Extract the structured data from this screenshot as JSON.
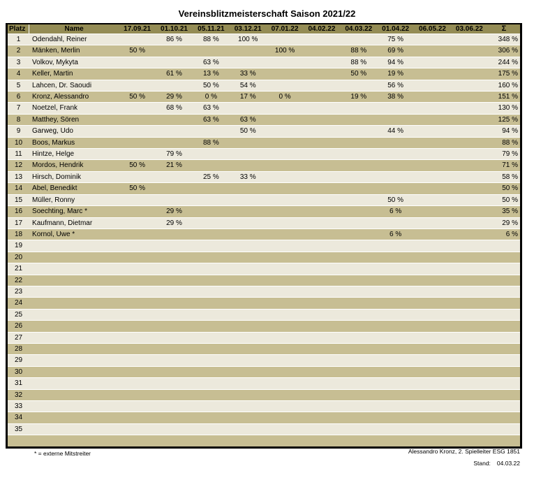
{
  "title": "Vereinsblitzmeisterschaft Saison 2021/22",
  "colors": {
    "header_bg": "#948c55",
    "row_odd": "#ece9dc",
    "row_even": "#c7be93",
    "table_border": "#000000",
    "row_separator": "#ffffff",
    "text": "#000000"
  },
  "table": {
    "columns": [
      "Platz",
      "Name",
      "17.09.21",
      "01.10.21",
      "05.11.21",
      "03.12.21",
      "07.01.22",
      "04.02.22",
      "04.03.22",
      "01.04.22",
      "06.05.22",
      "03.06.22",
      "Σ"
    ],
    "rows": [
      {
        "platz": "1",
        "name": "Odendahl, Reiner",
        "scores": [
          "",
          "86 %",
          "88 %",
          "100 %",
          "",
          "",
          "",
          "75 %",
          "",
          ""
        ],
        "sum": "348 %"
      },
      {
        "platz": "2",
        "name": "Mänken, Merlin",
        "scores": [
          "50 %",
          "",
          "",
          "",
          "100 %",
          "",
          "88 %",
          "69 %",
          "",
          ""
        ],
        "sum": "306 %"
      },
      {
        "platz": "3",
        "name": "Volkov, Mykyta",
        "scores": [
          "",
          "",
          "63 %",
          "",
          "",
          "",
          "88 %",
          "94 %",
          "",
          ""
        ],
        "sum": "244 %"
      },
      {
        "platz": "4",
        "name": "Keller, Martin",
        "scores": [
          "",
          "61 %",
          "13 %",
          "33 %",
          "",
          "",
          "50 %",
          "19 %",
          "",
          ""
        ],
        "sum": "175 %"
      },
      {
        "platz": "5",
        "name": "Lahcen, Dr. Saoudi",
        "scores": [
          "",
          "",
          "50 %",
          "54 %",
          "",
          "",
          "",
          "56 %",
          "",
          ""
        ],
        "sum": "160 %"
      },
      {
        "platz": "6",
        "name": "Kronz, Alessandro",
        "scores": [
          "50 %",
          "29 %",
          "0 %",
          "17 %",
          "0 %",
          "",
          "19 %",
          "38 %",
          "",
          ""
        ],
        "sum": "151 %"
      },
      {
        "platz": "7",
        "name": "Noetzel, Frank",
        "scores": [
          "",
          "68 %",
          "63 %",
          "",
          "",
          "",
          "",
          "",
          "",
          ""
        ],
        "sum": "130 %"
      },
      {
        "platz": "8",
        "name": "Matthey, Sören",
        "scores": [
          "",
          "",
          "63 %",
          "63 %",
          "",
          "",
          "",
          "",
          "",
          ""
        ],
        "sum": "125 %"
      },
      {
        "platz": "9",
        "name": "Garweg, Udo",
        "scores": [
          "",
          "",
          "",
          "50 %",
          "",
          "",
          "",
          "44 %",
          "",
          ""
        ],
        "sum": "94 %"
      },
      {
        "platz": "10",
        "name": "Boos, Markus",
        "scores": [
          "",
          "",
          "88 %",
          "",
          "",
          "",
          "",
          "",
          "",
          ""
        ],
        "sum": "88 %"
      },
      {
        "platz": "11",
        "name": "Hintze, Helge",
        "scores": [
          "",
          "79 %",
          "",
          "",
          "",
          "",
          "",
          "",
          "",
          ""
        ],
        "sum": "79 %"
      },
      {
        "platz": "12",
        "name": "Mordos, Hendrik",
        "scores": [
          "50 %",
          "21 %",
          "",
          "",
          "",
          "",
          "",
          "",
          "",
          ""
        ],
        "sum": "71 %"
      },
      {
        "platz": "13",
        "name": "Hirsch, Dominik",
        "scores": [
          "",
          "",
          "25 %",
          "33 %",
          "",
          "",
          "",
          "",
          "",
          ""
        ],
        "sum": "58 %"
      },
      {
        "platz": "14",
        "name": "Abel, Benedikt",
        "scores": [
          "50 %",
          "",
          "",
          "",
          "",
          "",
          "",
          "",
          "",
          ""
        ],
        "sum": "50 %"
      },
      {
        "platz": "15",
        "name": "Müller, Ronny",
        "scores": [
          "",
          "",
          "",
          "",
          "",
          "",
          "",
          "50 %",
          "",
          ""
        ],
        "sum": "50 %"
      },
      {
        "platz": "16",
        "name": "Soechting, Marc *",
        "scores": [
          "",
          "29 %",
          "",
          "",
          "",
          "",
          "",
          "6 %",
          "",
          ""
        ],
        "sum": "35 %"
      },
      {
        "platz": "17",
        "name": "Kaufmann, Dietmar",
        "scores": [
          "",
          "29 %",
          "",
          "",
          "",
          "",
          "",
          "",
          "",
          ""
        ],
        "sum": "29 %"
      },
      {
        "platz": "18",
        "name": "Kornol, Uwe *",
        "scores": [
          "",
          "",
          "",
          "",
          "",
          "",
          "",
          "6 %",
          "",
          ""
        ],
        "sum": "6 %"
      },
      {
        "platz": "19",
        "name": "",
        "scores": [
          "",
          "",
          "",
          "",
          "",
          "",
          "",
          "",
          "",
          ""
        ],
        "sum": ""
      },
      {
        "platz": "20",
        "name": "",
        "scores": [
          "",
          "",
          "",
          "",
          "",
          "",
          "",
          "",
          "",
          ""
        ],
        "sum": ""
      },
      {
        "platz": "21",
        "name": "",
        "scores": [
          "",
          "",
          "",
          "",
          "",
          "",
          "",
          "",
          "",
          ""
        ],
        "sum": ""
      },
      {
        "platz": "22",
        "name": "",
        "scores": [
          "",
          "",
          "",
          "",
          "",
          "",
          "",
          "",
          "",
          ""
        ],
        "sum": ""
      },
      {
        "platz": "23",
        "name": "",
        "scores": [
          "",
          "",
          "",
          "",
          "",
          "",
          "",
          "",
          "",
          ""
        ],
        "sum": ""
      },
      {
        "platz": "24",
        "name": "",
        "scores": [
          "",
          "",
          "",
          "",
          "",
          "",
          "",
          "",
          "",
          ""
        ],
        "sum": ""
      },
      {
        "platz": "25",
        "name": "",
        "scores": [
          "",
          "",
          "",
          "",
          "",
          "",
          "",
          "",
          "",
          ""
        ],
        "sum": ""
      },
      {
        "platz": "26",
        "name": "",
        "scores": [
          "",
          "",
          "",
          "",
          "",
          "",
          "",
          "",
          "",
          ""
        ],
        "sum": ""
      },
      {
        "platz": "27",
        "name": "",
        "scores": [
          "",
          "",
          "",
          "",
          "",
          "",
          "",
          "",
          "",
          ""
        ],
        "sum": ""
      },
      {
        "platz": "28",
        "name": "",
        "scores": [
          "",
          "",
          "",
          "",
          "",
          "",
          "",
          "",
          "",
          ""
        ],
        "sum": ""
      },
      {
        "platz": "29",
        "name": "",
        "scores": [
          "",
          "",
          "",
          "",
          "",
          "",
          "",
          "",
          "",
          ""
        ],
        "sum": ""
      },
      {
        "platz": "30",
        "name": "",
        "scores": [
          "",
          "",
          "",
          "",
          "",
          "",
          "",
          "",
          "",
          ""
        ],
        "sum": ""
      },
      {
        "platz": "31",
        "name": "",
        "scores": [
          "",
          "",
          "",
          "",
          "",
          "",
          "",
          "",
          "",
          ""
        ],
        "sum": ""
      },
      {
        "platz": "32",
        "name": "",
        "scores": [
          "",
          "",
          "",
          "",
          "",
          "",
          "",
          "",
          "",
          ""
        ],
        "sum": ""
      },
      {
        "platz": "33",
        "name": "",
        "scores": [
          "",
          "",
          "",
          "",
          "",
          "",
          "",
          "",
          "",
          ""
        ],
        "sum": ""
      },
      {
        "platz": "34",
        "name": "",
        "scores": [
          "",
          "",
          "",
          "",
          "",
          "",
          "",
          "",
          "",
          ""
        ],
        "sum": ""
      },
      {
        "platz": "35",
        "name": "",
        "scores": [
          "",
          "",
          "",
          "",
          "",
          "",
          "",
          "",
          "",
          ""
        ],
        "sum": ""
      },
      {
        "platz": "",
        "name": "",
        "scores": [
          "",
          "",
          "",
          "",
          "",
          "",
          "",
          "",
          "",
          ""
        ],
        "sum": ""
      }
    ]
  },
  "footer": {
    "note": "* = externe Mitstreiter",
    "signature": "Alessandro Kronz, 2. Spielleiter ESG 1851",
    "stand_label": "Stand:",
    "stand_value": "04.03.22"
  }
}
